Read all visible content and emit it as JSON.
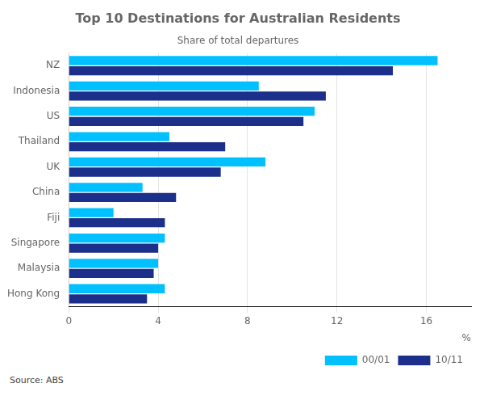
{
  "chart_data": {
    "type": "bar",
    "orientation": "horizontal",
    "title": "Top 10 Destinations for Australian Residents",
    "subtitle": "Share of total departures",
    "xlabel": "%",
    "source": "Source: ABS",
    "categories": [
      "NZ",
      "Indonesia",
      "US",
      "Thailand",
      "UK",
      "China",
      "Fiji",
      "Singapore",
      "Malaysia",
      "Hong Kong"
    ],
    "series": [
      {
        "name": "00/01",
        "color": "#00C0FF",
        "values": [
          16.5,
          8.5,
          11.0,
          4.5,
          8.8,
          3.3,
          2.0,
          4.3,
          4.0,
          4.3
        ]
      },
      {
        "name": "10/11",
        "color": "#1C2F8A",
        "values": [
          14.5,
          11.5,
          10.5,
          7.0,
          6.8,
          4.8,
          4.3,
          4.0,
          3.8,
          3.5
        ]
      }
    ],
    "xlim": [
      0,
      18
    ],
    "xticks": [
      0,
      4,
      8,
      12,
      16
    ],
    "grid": true,
    "legend": "lower right"
  }
}
